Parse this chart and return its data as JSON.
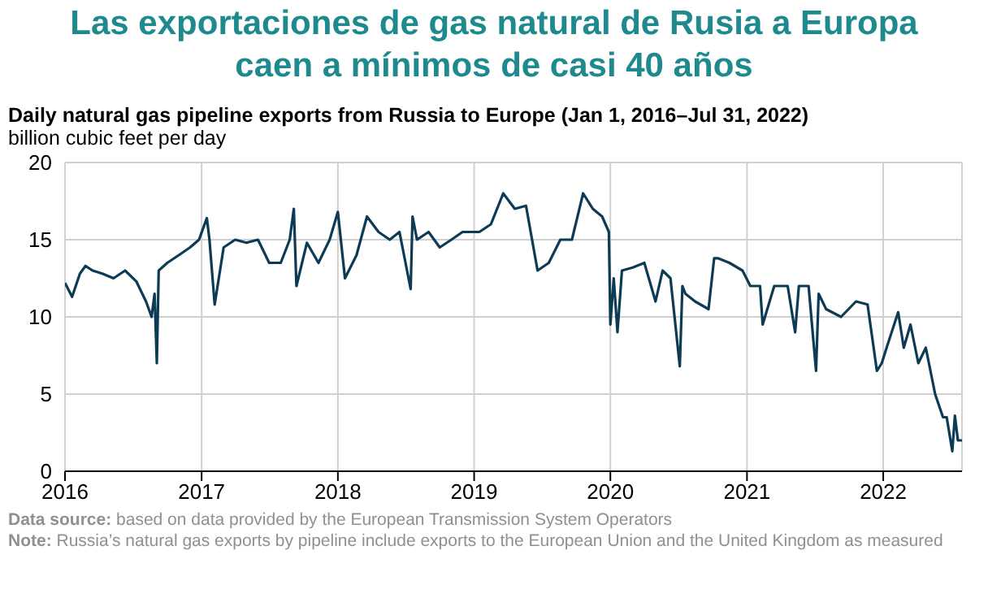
{
  "chart_data": {
    "type": "line",
    "title": "Las exportaciones de gas natural de Rusia a Europa caen a mínimos de casi 40 años",
    "subtitle": "Daily natural gas pipeline exports from Russia to Europe (Jan 1, 2016–Jul 31, 2022)",
    "ylabel": "billion cubic feet per day",
    "annotations": [
      "Data source: based on data provided by the European Transmission System Operators",
      "Note: Russia’s natural gas exports by pipeline include exports to the European Union and the United Kingdom as measured"
    ],
    "x": [
      "2016-01-01",
      "2016-01-20",
      "2016-02-10",
      "2016-02-25",
      "2016-03-15",
      "2016-04-10",
      "2016-05-10",
      "2016-06-10",
      "2016-07-10",
      "2016-08-05",
      "2016-08-20",
      "2016-08-28",
      "2016-09-03",
      "2016-09-08",
      "2016-10-01",
      "2016-11-01",
      "2016-12-01",
      "2016-12-25",
      "2017-01-15",
      "2017-01-22",
      "2017-02-05",
      "2017-03-01",
      "2017-04-01",
      "2017-05-01",
      "2017-06-01",
      "2017-07-01",
      "2017-08-01",
      "2017-08-25",
      "2017-09-05",
      "2017-09-12",
      "2017-10-10",
      "2017-11-10",
      "2017-12-10",
      "2018-01-01",
      "2018-01-20",
      "2018-02-20",
      "2018-03-20",
      "2018-04-20",
      "2018-05-20",
      "2018-06-15",
      "2018-07-15",
      "2018-07-20",
      "2018-08-01",
      "2018-09-01",
      "2018-10-01",
      "2018-11-01",
      "2018-12-01",
      "2019-01-15",
      "2019-02-15",
      "2019-03-20",
      "2019-04-20",
      "2019-05-20",
      "2019-06-20",
      "2019-07-20",
      "2019-08-20",
      "2019-09-20",
      "2019-10-20",
      "2019-11-15",
      "2019-12-10",
      "2019-12-28",
      "2020-01-01",
      "2020-01-10",
      "2020-01-20",
      "2020-02-01",
      "2020-03-01",
      "2020-04-01",
      "2020-05-01",
      "2020-05-20",
      "2020-06-10",
      "2020-07-05",
      "2020-07-12",
      "2020-07-20",
      "2020-08-15",
      "2020-09-20",
      "2020-10-05",
      "2020-10-15",
      "2020-11-15",
      "2020-12-20",
      "2021-01-10",
      "2021-02-05",
      "2021-02-12",
      "2021-03-15",
      "2021-04-20",
      "2021-05-10",
      "2021-05-20",
      "2021-06-15",
      "2021-07-05",
      "2021-07-12",
      "2021-08-01",
      "2021-09-10",
      "2021-10-20",
      "2021-11-20",
      "2021-12-15",
      "2021-12-28",
      "2022-01-10",
      "2022-02-10",
      "2022-02-25",
      "2022-03-15",
      "2022-04-05",
      "2022-04-25",
      "2022-05-20",
      "2022-06-10",
      "2022-06-20",
      "2022-07-05",
      "2022-07-12",
      "2022-07-20",
      "2022-07-31"
    ],
    "series": [
      {
        "color": "#0d3b55",
        "values": [
          12.2,
          11.3,
          12.8,
          13.3,
          13,
          12.8,
          12.5,
          13,
          12.3,
          11,
          10,
          11.5,
          7,
          13,
          13.5,
          14,
          14.5,
          15,
          16.4,
          15,
          10.8,
          14.5,
          15,
          14.8,
          15,
          13.5,
          13.5,
          15,
          17,
          12,
          14.8,
          13.5,
          15,
          16.8,
          12.5,
          14,
          16.5,
          15.5,
          15,
          15.5,
          11.8,
          16.5,
          15,
          15.5,
          14.5,
          15,
          15.5,
          15.5,
          16,
          18,
          17,
          17.2,
          13,
          13.5,
          15,
          15,
          18,
          17,
          16.5,
          15.5,
          9.5,
          12.5,
          9,
          13,
          13.2,
          13.5,
          11,
          13,
          12.5,
          6.8,
          12,
          11.5,
          11,
          10.5,
          13.8,
          13.8,
          13.5,
          13,
          12,
          12,
          9.5,
          12,
          12,
          9,
          12,
          12,
          6.5,
          11.5,
          10.5,
          10,
          11,
          10.8,
          6.5,
          7,
          8,
          10.3,
          8,
          9.5,
          7,
          8,
          5,
          3.5,
          3.5,
          1.3,
          3.6,
          2,
          2
        ]
      }
    ],
    "ylim": [
      0,
      20
    ],
    "yticks": [
      0,
      5,
      10,
      15,
      20
    ],
    "xlim": [
      "2016-01-01",
      "2022-07-31"
    ],
    "xticks": [
      {
        "value": "2016-01-01",
        "label": "2016"
      },
      {
        "value": "2017-01-01",
        "label": "2017"
      },
      {
        "value": "2018-01-01",
        "label": "2018"
      },
      {
        "value": "2019-01-01",
        "label": "2019"
      },
      {
        "value": "2020-01-01",
        "label": "2020"
      },
      {
        "value": "2021-01-01",
        "label": "2021"
      },
      {
        "value": "2022-01-01",
        "label": "2022"
      }
    ],
    "grid": true,
    "marker": "none",
    "line_style": "solid"
  }
}
